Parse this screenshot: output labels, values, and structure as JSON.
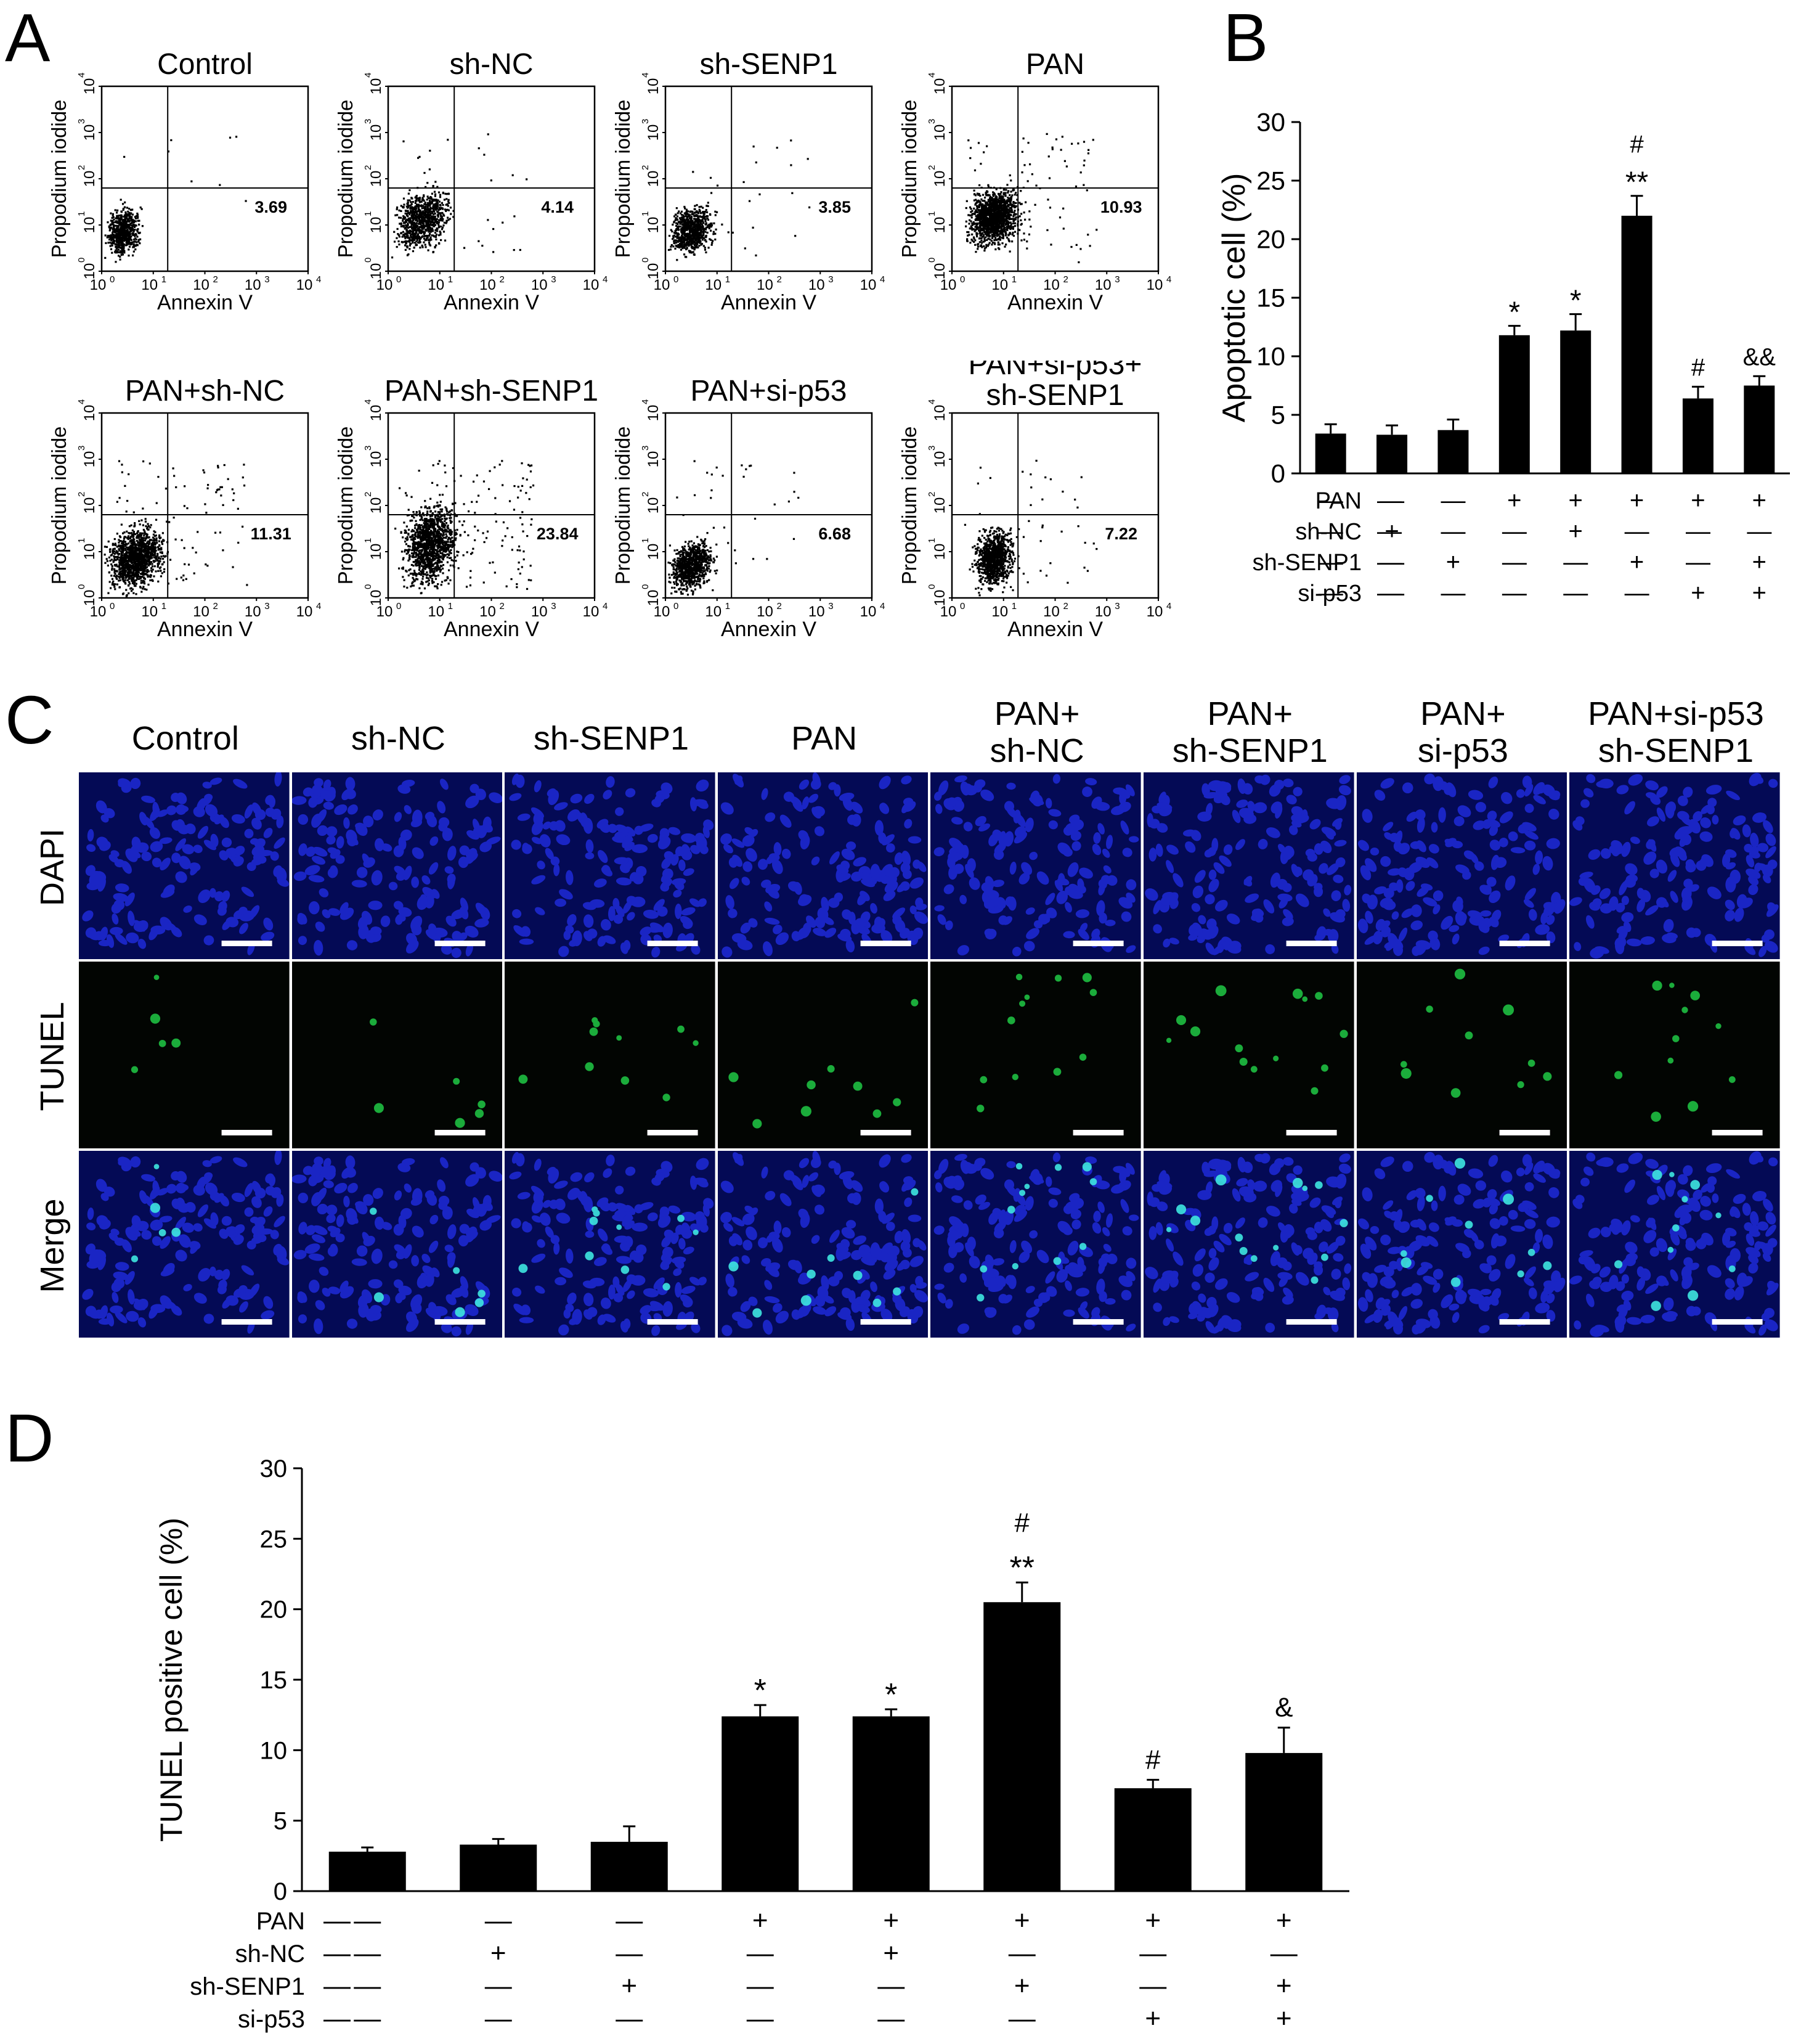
{
  "panels": {
    "a": "A",
    "b": "B",
    "c": "C",
    "d": "D"
  },
  "flow": {
    "y_label": "Propodium iodide",
    "x_label": "Annexin V",
    "ticks": [
      "0",
      "1",
      "2",
      "3",
      "4"
    ],
    "tick_base": "10",
    "plots": [
      {
        "title": "Control",
        "value": "3.69"
      },
      {
        "title": "sh-NC",
        "value": "4.14"
      },
      {
        "title": "sh-SENP1",
        "value": "3.85"
      },
      {
        "title": "PAN",
        "value": "10.93"
      },
      {
        "title": "PAN+sh-NC",
        "value": "11.31"
      },
      {
        "title": "PAN+sh-SENP1",
        "value": "23.84"
      },
      {
        "title": "PAN+si-p53",
        "value": "6.68"
      },
      {
        "title": "PAN+si-p53+\nsh-SENP1",
        "value": "7.22"
      }
    ]
  },
  "microscopy": {
    "columns": [
      "Control",
      "sh-NC",
      "sh-SENP1",
      "PAN",
      "PAN+\nsh-NC",
      "PAN+\nsh-SENP1",
      "PAN+\nsi-p53",
      "PAN+si-p53\nsh-SENP1"
    ],
    "rows": [
      "DAPI",
      "TUNEL",
      "Merge"
    ],
    "colors": {
      "dapi": "#1e2ad8",
      "dapi_bg": "#040a55",
      "tunel": "#22d64a",
      "tunel_bg": "#020502",
      "merge_cell": "#3ee6e0"
    }
  },
  "chart_data": [
    {
      "type": "bar",
      "panel": "B",
      "title": "",
      "xlabel": "",
      "ylabel": "Apoptotic cell (%)",
      "ylim": [
        0,
        30
      ],
      "yticks": [
        "0",
        "5",
        "10",
        "15",
        "20",
        "25",
        "30"
      ],
      "categories": [
        "1",
        "2",
        "3",
        "4",
        "5",
        "6",
        "7",
        "8"
      ],
      "values": [
        3.4,
        3.3,
        3.7,
        11.8,
        12.2,
        22.0,
        6.4,
        7.5
      ],
      "errors": [
        0.8,
        0.8,
        0.9,
        0.8,
        1.4,
        1.7,
        1.0,
        0.8
      ],
      "annotations": [
        [
          "",
          ""
        ],
        [
          "",
          ""
        ],
        [
          "",
          ""
        ],
        [
          "",
          "*"
        ],
        [
          "",
          "*"
        ],
        [
          "#",
          "**"
        ],
        [
          "",
          "#"
        ],
        [
          "",
          "&&"
        ]
      ],
      "treatments": [
        {
          "label": "PAN",
          "marks": [
            "—",
            "—",
            "—",
            "+",
            "+",
            "+",
            "+",
            "+"
          ]
        },
        {
          "label": "sh-NC",
          "marks": [
            "—",
            "+",
            "—",
            "—",
            "+",
            "—",
            "—",
            "—"
          ]
        },
        {
          "label": "sh-SENP1",
          "marks": [
            "—",
            "—",
            "+",
            "—",
            "—",
            "+",
            "—",
            "+"
          ]
        },
        {
          "label": "si-p53",
          "marks": [
            "—",
            "—",
            "—",
            "—",
            "—",
            "—",
            "+",
            "+"
          ]
        }
      ],
      "colors": {
        "bar": "#000000"
      }
    },
    {
      "type": "bar",
      "panel": "D",
      "title": "",
      "xlabel": "",
      "ylabel": "TUNEL positive cell (%)",
      "ylim": [
        0,
        30
      ],
      "yticks": [
        "0",
        "5",
        "10",
        "15",
        "20",
        "25",
        "30"
      ],
      "categories": [
        "1",
        "2",
        "3",
        "4",
        "5",
        "6",
        "7",
        "8"
      ],
      "values": [
        2.8,
        3.3,
        3.5,
        12.4,
        12.4,
        20.5,
        7.3,
        9.8
      ],
      "errors": [
        0.3,
        0.4,
        1.1,
        0.8,
        0.5,
        1.4,
        0.6,
        1.8
      ],
      "annotations": [
        [
          "",
          ""
        ],
        [
          "",
          ""
        ],
        [
          "",
          ""
        ],
        [
          "",
          "*"
        ],
        [
          "",
          "*"
        ],
        [
          "#",
          "**"
        ],
        [
          "",
          "#"
        ],
        [
          "",
          "&"
        ]
      ],
      "treatments": [
        {
          "label": "PAN",
          "marks": [
            "—",
            "—",
            "—",
            "+",
            "+",
            "+",
            "+",
            "+"
          ]
        },
        {
          "label": "sh-NC",
          "marks": [
            "—",
            "+",
            "—",
            "—",
            "+",
            "—",
            "—",
            "—"
          ]
        },
        {
          "label": "sh-SENP1",
          "marks": [
            "—",
            "—",
            "+",
            "—",
            "—",
            "+",
            "—",
            "+"
          ]
        },
        {
          "label": "si-p53",
          "marks": [
            "—",
            "—",
            "—",
            "—",
            "—",
            "—",
            "+",
            "+"
          ]
        }
      ],
      "colors": {
        "bar": "#000000"
      }
    }
  ]
}
